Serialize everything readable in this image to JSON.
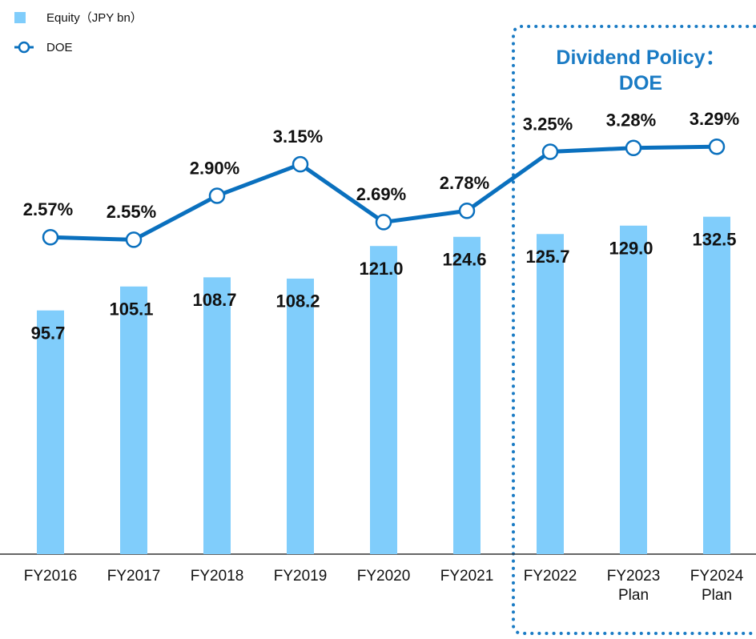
{
  "chart_data": {
    "type": "bar",
    "categories": [
      "FY2016",
      "FY2017",
      "FY2018",
      "FY2019",
      "FY2020",
      "FY2021",
      "FY2022",
      "FY2023\nPlan",
      "FY2024\nPlan"
    ],
    "series": [
      {
        "name": "Equity（JPY bn）",
        "type": "bar",
        "color": "#80cdfb",
        "values": [
          95.7,
          105.1,
          108.7,
          108.2,
          121.0,
          124.6,
          125.7,
          129.0,
          132.5
        ],
        "value_labels": [
          "95.7",
          "105.1",
          "108.7",
          "108.2",
          "121.0",
          "124.6",
          "125.7",
          "129.0",
          "132.5"
        ]
      },
      {
        "name": "DOE",
        "type": "line",
        "axis": "y2",
        "color": "#0a70be",
        "values": [
          2.57,
          2.55,
          2.9,
          3.15,
          2.69,
          2.78,
          3.25,
          3.28,
          3.29
        ],
        "value_labels": [
          "2.57%",
          "2.55%",
          "2.90%",
          "3.15%",
          "2.69%",
          "2.78%",
          "3.25%",
          "3.28%",
          "3.29%"
        ]
      }
    ],
    "annotation": "Dividend Policy：\nDOE",
    "ylim": [
      0,
      200
    ],
    "y2lim": [
      0.05,
      4.1
    ],
    "legend": "top-left"
  }
}
